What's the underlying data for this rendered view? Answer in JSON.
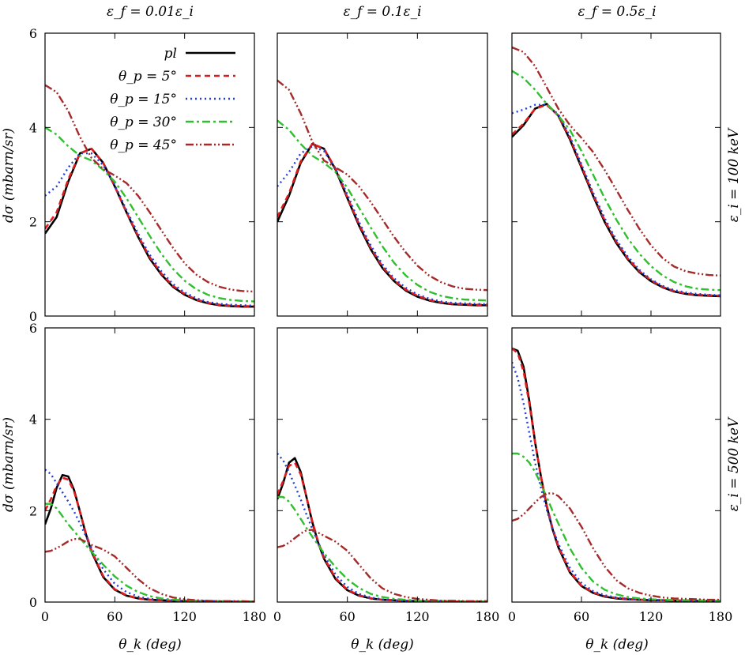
{
  "chart_data": {
    "type": "line",
    "grid": false,
    "legend_placement": "top-right of first panel",
    "x_label": "θ_k (deg)",
    "y_label": "dσ (mbarn/sr)",
    "xlim": [
      0,
      180
    ],
    "ylim": [
      0,
      6
    ],
    "x_ticks": [
      "0",
      "60",
      "120",
      "180"
    ],
    "y_ticks": [
      "0",
      "2",
      "4",
      "6"
    ],
    "column_titles": [
      "ε_f = 0.01ε_i",
      "ε_f = 0.1ε_i",
      "ε_f = 0.5ε_i"
    ],
    "row_labels": [
      "ε_i = 100 keV",
      "ε_i = 500 keV"
    ],
    "series_styles": [
      {
        "name": "pl",
        "color": "#000000",
        "dash": "",
        "width": 2.6
      },
      {
        "name": "θ_p = 5°",
        "color": "#e31a1c",
        "dash": "7 5",
        "width": 2.6
      },
      {
        "name": "θ_p = 15°",
        "color": "#1f3fdb",
        "dash": "2 4",
        "width": 2.4
      },
      {
        "name": "θ_p = 30°",
        "color": "#2fbf2f",
        "dash": "10 4 3 4",
        "width": 2.4
      },
      {
        "name": "θ_p = 45°",
        "color": "#a52a2a",
        "dash": "10 3 2 3 2 3",
        "width": 2.4
      }
    ],
    "panels": [
      {
        "row": 0,
        "col": 0,
        "x": [
          0,
          10,
          20,
          30,
          40,
          50,
          60,
          70,
          80,
          90,
          100,
          110,
          120,
          130,
          140,
          150,
          160,
          170,
          180
        ],
        "series": [
          {
            "name": "pl",
            "values": [
              1.75,
              2.1,
              2.85,
              3.45,
              3.55,
              3.25,
              2.75,
              2.2,
              1.68,
              1.22,
              0.88,
              0.62,
              0.45,
              0.34,
              0.27,
              0.23,
              0.21,
              0.2,
              0.2
            ]
          },
          {
            "name": "θ_p = 5°",
            "values": [
              1.85,
              2.2,
              2.9,
              3.45,
              3.55,
              3.25,
              2.75,
              2.2,
              1.7,
              1.25,
              0.9,
              0.64,
              0.47,
              0.35,
              0.28,
              0.24,
              0.22,
              0.21,
              0.21
            ]
          },
          {
            "name": "θ_p = 15°",
            "values": [
              2.55,
              2.75,
              3.15,
              3.45,
              3.45,
              3.2,
              2.78,
              2.25,
              1.75,
              1.3,
              0.95,
              0.68,
              0.5,
              0.38,
              0.3,
              0.26,
              0.24,
              0.23,
              0.22
            ]
          },
          {
            "name": "θ_p = 30°",
            "values": [
              4.0,
              3.85,
              3.6,
              3.4,
              3.3,
              3.1,
              2.85,
              2.5,
              2.1,
              1.7,
              1.32,
              1.0,
              0.75,
              0.57,
              0.45,
              0.38,
              0.34,
              0.32,
              0.31
            ]
          },
          {
            "name": "θ_p = 45°",
            "values": [
              4.9,
              4.75,
              4.35,
              3.8,
              3.35,
              3.12,
              2.98,
              2.82,
              2.55,
              2.2,
              1.82,
              1.45,
              1.12,
              0.88,
              0.72,
              0.62,
              0.56,
              0.53,
              0.52
            ]
          }
        ]
      },
      {
        "row": 0,
        "col": 1,
        "x": [
          0,
          10,
          20,
          30,
          40,
          50,
          60,
          70,
          80,
          90,
          100,
          110,
          120,
          130,
          140,
          150,
          160,
          170,
          180
        ],
        "series": [
          {
            "name": "pl",
            "values": [
              2.0,
              2.55,
              3.25,
              3.65,
              3.55,
              3.1,
              2.5,
              1.92,
              1.42,
              1.02,
              0.74,
              0.54,
              0.41,
              0.33,
              0.28,
              0.25,
              0.24,
              0.23,
              0.23
            ]
          },
          {
            "name": "θ_p = 5°",
            "values": [
              2.1,
              2.6,
              3.28,
              3.65,
              3.55,
              3.12,
              2.52,
              1.95,
              1.45,
              1.05,
              0.76,
              0.56,
              0.43,
              0.34,
              0.29,
              0.26,
              0.25,
              0.24,
              0.24
            ]
          },
          {
            "name": "θ_p = 15°",
            "values": [
              2.75,
              3.05,
              3.45,
              3.6,
              3.5,
              3.12,
              2.58,
              2.0,
              1.5,
              1.1,
              0.8,
              0.6,
              0.46,
              0.37,
              0.31,
              0.28,
              0.27,
              0.26,
              0.25
            ]
          },
          {
            "name": "θ_p = 30°",
            "values": [
              4.15,
              3.95,
              3.65,
              3.4,
              3.25,
              3.05,
              2.72,
              2.3,
              1.88,
              1.48,
              1.13,
              0.86,
              0.66,
              0.52,
              0.43,
              0.38,
              0.35,
              0.34,
              0.33
            ]
          },
          {
            "name": "θ_p = 45°",
            "values": [
              5.0,
              4.8,
              4.3,
              3.7,
              3.3,
              3.15,
              3.0,
              2.75,
              2.42,
              2.05,
              1.68,
              1.35,
              1.07,
              0.86,
              0.72,
              0.63,
              0.58,
              0.56,
              0.55
            ]
          }
        ]
      },
      {
        "row": 0,
        "col": 2,
        "x": [
          0,
          10,
          20,
          30,
          40,
          50,
          60,
          70,
          80,
          90,
          100,
          110,
          120,
          130,
          140,
          150,
          160,
          170,
          180
        ],
        "series": [
          {
            "name": "pl",
            "values": [
              3.8,
              4.05,
              4.4,
              4.5,
              4.25,
              3.75,
              3.15,
              2.55,
              2.0,
              1.55,
              1.2,
              0.93,
              0.74,
              0.61,
              0.52,
              0.47,
              0.44,
              0.43,
              0.42
            ]
          },
          {
            "name": "θ_p = 5°",
            "values": [
              3.85,
              4.08,
              4.4,
              4.48,
              4.25,
              3.78,
              3.18,
              2.58,
              2.03,
              1.58,
              1.22,
              0.95,
              0.76,
              0.62,
              0.53,
              0.48,
              0.45,
              0.44,
              0.43
            ]
          },
          {
            "name": "θ_p = 15°",
            "values": [
              4.3,
              4.38,
              4.48,
              4.48,
              4.28,
              3.82,
              3.22,
              2.62,
              2.08,
              1.62,
              1.26,
              0.98,
              0.78,
              0.64,
              0.55,
              0.5,
              0.47,
              0.45,
              0.44
            ]
          },
          {
            "name": "θ_p = 30°",
            "values": [
              5.2,
              5.05,
              4.8,
              4.5,
              4.25,
              3.95,
              3.5,
              3.0,
              2.5,
              2.05,
              1.65,
              1.32,
              1.06,
              0.86,
              0.72,
              0.63,
              0.58,
              0.56,
              0.55
            ]
          },
          {
            "name": "θ_p = 45°",
            "values": [
              5.7,
              5.6,
              5.3,
              4.85,
              4.4,
              4.05,
              3.78,
              3.48,
              3.1,
              2.68,
              2.25,
              1.85,
              1.5,
              1.23,
              1.05,
              0.95,
              0.9,
              0.87,
              0.86
            ]
          }
        ]
      },
      {
        "row": 1,
        "col": 0,
        "x": [
          0,
          5,
          10,
          15,
          20,
          25,
          30,
          35,
          40,
          50,
          60,
          70,
          80,
          90,
          100,
          110,
          120,
          130,
          140,
          150,
          160,
          170,
          180
        ],
        "series": [
          {
            "name": "pl",
            "values": [
              1.7,
              2.05,
              2.5,
              2.78,
              2.75,
              2.45,
              1.98,
              1.5,
              1.1,
              0.55,
              0.27,
              0.14,
              0.08,
              0.05,
              0.04,
              0.03,
              0.02,
              0.02,
              0.02,
              0.01,
              0.01,
              0.01,
              0.01
            ]
          },
          {
            "name": "θ_p = 5°",
            "values": [
              2.0,
              2.25,
              2.55,
              2.72,
              2.68,
              2.42,
              1.98,
              1.52,
              1.12,
              0.57,
              0.28,
              0.15,
              0.08,
              0.05,
              0.04,
              0.03,
              0.02,
              0.02,
              0.02,
              0.01,
              0.01,
              0.01,
              0.01
            ]
          },
          {
            "name": "θ_p = 15°",
            "values": [
              2.9,
              2.8,
              2.6,
              2.4,
              2.2,
              1.98,
              1.72,
              1.45,
              1.18,
              0.72,
              0.4,
              0.22,
              0.12,
              0.07,
              0.05,
              0.04,
              0.03,
              0.02,
              0.02,
              0.02,
              0.01,
              0.01,
              0.01
            ]
          },
          {
            "name": "θ_p = 30°",
            "values": [
              2.15,
              2.15,
              2.05,
              1.88,
              1.7,
              1.55,
              1.4,
              1.25,
              1.1,
              0.82,
              0.56,
              0.36,
              0.22,
              0.13,
              0.08,
              0.05,
              0.04,
              0.03,
              0.02,
              0.02,
              0.02,
              0.01,
              0.01
            ]
          },
          {
            "name": "θ_p = 45°",
            "values": [
              1.1,
              1.12,
              1.18,
              1.25,
              1.33,
              1.38,
              1.38,
              1.32,
              1.25,
              1.15,
              1.0,
              0.75,
              0.5,
              0.3,
              0.18,
              0.1,
              0.06,
              0.04,
              0.03,
              0.02,
              0.02,
              0.02,
              0.01
            ]
          }
        ]
      },
      {
        "row": 1,
        "col": 1,
        "x": [
          0,
          5,
          10,
          15,
          20,
          25,
          30,
          35,
          40,
          50,
          60,
          70,
          80,
          90,
          100,
          110,
          120,
          130,
          140,
          150,
          160,
          170,
          180
        ],
        "series": [
          {
            "name": "pl",
            "values": [
              2.25,
              2.6,
              3.05,
              3.15,
              2.85,
              2.3,
              1.75,
              1.3,
              0.95,
              0.5,
              0.26,
              0.14,
              0.08,
              0.05,
              0.04,
              0.03,
              0.02,
              0.02,
              0.02,
              0.01,
              0.01,
              0.01,
              0.01
            ]
          },
          {
            "name": "θ_p = 5°",
            "values": [
              2.35,
              2.65,
              2.98,
              3.05,
              2.8,
              2.3,
              1.77,
              1.32,
              0.97,
              0.52,
              0.27,
              0.15,
              0.08,
              0.05,
              0.04,
              0.03,
              0.02,
              0.02,
              0.02,
              0.01,
              0.01,
              0.01,
              0.01
            ]
          },
          {
            "name": "θ_p = 15°",
            "values": [
              3.25,
              3.1,
              2.85,
              2.55,
              2.25,
              1.92,
              1.6,
              1.3,
              1.03,
              0.6,
              0.33,
              0.18,
              0.1,
              0.06,
              0.04,
              0.03,
              0.02,
              0.02,
              0.02,
              0.01,
              0.01,
              0.01,
              0.01
            ]
          },
          {
            "name": "θ_p = 30°",
            "values": [
              2.3,
              2.3,
              2.2,
              2.02,
              1.82,
              1.62,
              1.43,
              1.25,
              1.07,
              0.76,
              0.5,
              0.31,
              0.18,
              0.11,
              0.07,
              0.05,
              0.03,
              0.03,
              0.02,
              0.02,
              0.01,
              0.01,
              0.01
            ]
          },
          {
            "name": "θ_p = 45°",
            "values": [
              1.2,
              1.23,
              1.3,
              1.4,
              1.5,
              1.57,
              1.58,
              1.52,
              1.45,
              1.32,
              1.12,
              0.82,
              0.52,
              0.3,
              0.18,
              0.11,
              0.07,
              0.05,
              0.03,
              0.03,
              0.02,
              0.02,
              0.02
            ]
          }
        ]
      },
      {
        "row": 1,
        "col": 2,
        "x": [
          0,
          5,
          10,
          15,
          20,
          25,
          30,
          35,
          40,
          50,
          60,
          70,
          80,
          90,
          100,
          110,
          120,
          130,
          140,
          150,
          160,
          170,
          180
        ],
        "series": [
          {
            "name": "pl",
            "values": [
              5.55,
              5.5,
              5.15,
              4.4,
              3.5,
              2.75,
              2.1,
              1.6,
              1.2,
              0.65,
              0.35,
              0.2,
              0.12,
              0.08,
              0.06,
              0.05,
              0.04,
              0.04,
              0.03,
              0.03,
              0.03,
              0.03,
              0.03
            ]
          },
          {
            "name": "θ_p = 5°",
            "values": [
              5.55,
              5.45,
              5.05,
              4.35,
              3.5,
              2.75,
              2.12,
              1.62,
              1.22,
              0.67,
              0.36,
              0.21,
              0.13,
              0.09,
              0.07,
              0.05,
              0.05,
              0.04,
              0.04,
              0.03,
              0.03,
              0.03,
              0.03
            ]
          },
          {
            "name": "θ_p = 15°",
            "values": [
              5.25,
              4.9,
              4.35,
              3.7,
              3.05,
              2.5,
              2.02,
              1.62,
              1.28,
              0.75,
              0.42,
              0.24,
              0.15,
              0.1,
              0.07,
              0.06,
              0.05,
              0.04,
              0.04,
              0.04,
              0.03,
              0.03,
              0.03
            ]
          },
          {
            "name": "θ_p = 30°",
            "values": [
              3.25,
              3.25,
              3.18,
              3.05,
              2.85,
              2.58,
              2.3,
              2.0,
              1.72,
              1.18,
              0.75,
              0.45,
              0.27,
              0.17,
              0.11,
              0.08,
              0.06,
              0.05,
              0.04,
              0.04,
              0.04,
              0.03,
              0.03
            ]
          },
          {
            "name": "θ_p = 45°",
            "values": [
              1.78,
              1.82,
              1.92,
              2.05,
              2.18,
              2.3,
              2.38,
              2.38,
              2.32,
              2.05,
              1.65,
              1.18,
              0.78,
              0.48,
              0.3,
              0.2,
              0.14,
              0.1,
              0.08,
              0.07,
              0.06,
              0.05,
              0.05
            ]
          }
        ]
      }
    ]
  }
}
